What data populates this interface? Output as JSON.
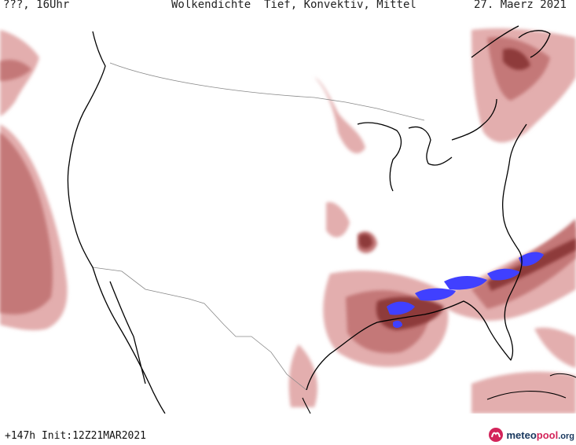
{
  "header": {
    "left": "???, 16Uhr",
    "center": "Wolkendichte  Tief, Konvektiv, Mittel",
    "right": "27. Maerz 2021"
  },
  "footer": {
    "forecast": "+147h Init:12Z21MAR2021"
  },
  "brand": {
    "part1": "meteo",
    "part2": "pool",
    "part3": ".org"
  },
  "legend_colors": {
    "low_density": "#e8b4b4",
    "medium_density": "#c98080",
    "high_density": "#8e3a3a",
    "convective": "#4b4bff",
    "coast_lines": "#000000",
    "borders": "#888888"
  }
}
